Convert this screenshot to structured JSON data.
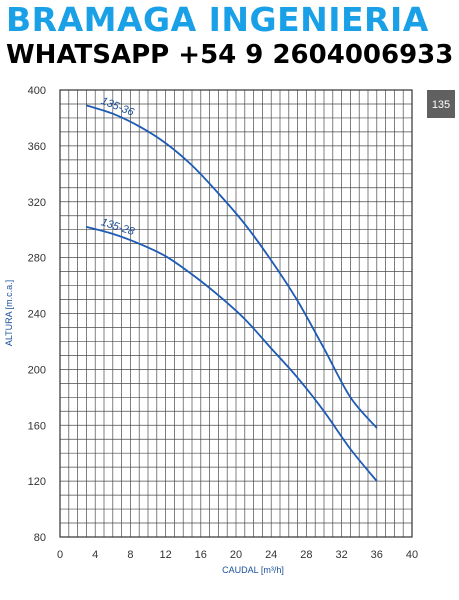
{
  "header": {
    "brand": "BRAMAGA INGENIERIA",
    "contact": "WHATSAPP  +54 9 2604006933"
  },
  "badge": {
    "label": "135"
  },
  "colors": {
    "curve": "#1d5bb5",
    "grid": "#4a4a4a",
    "brand": "#1aa0e6",
    "badge_bg": "#606060"
  },
  "chart_data": {
    "type": "line",
    "xlabel": "CAUDAL [m³/h]",
    "ylabel": "ALTURA [m.c.a.]",
    "xlim": [
      0,
      40
    ],
    "ylim": [
      80,
      400
    ],
    "x_ticks": [
      0,
      4,
      8,
      12,
      16,
      20,
      24,
      28,
      32,
      36,
      40
    ],
    "y_ticks": [
      80,
      120,
      160,
      200,
      240,
      280,
      320,
      360,
      400
    ],
    "grid": true,
    "series": [
      {
        "name": "135-36",
        "x": [
          3,
          6,
          9,
          12,
          15,
          18,
          21,
          24,
          27,
          30,
          33,
          36
        ],
        "y": [
          389,
          383,
          374,
          362,
          346,
          326,
          304,
          278,
          249,
          215,
          180,
          158
        ]
      },
      {
        "name": "135-28",
        "x": [
          3,
          6,
          9,
          12,
          15,
          18,
          21,
          24,
          27,
          30,
          33,
          36
        ],
        "y": [
          302,
          297,
          290,
          281,
          268,
          253,
          236,
          215,
          194,
          170,
          143,
          120
        ]
      }
    ]
  }
}
